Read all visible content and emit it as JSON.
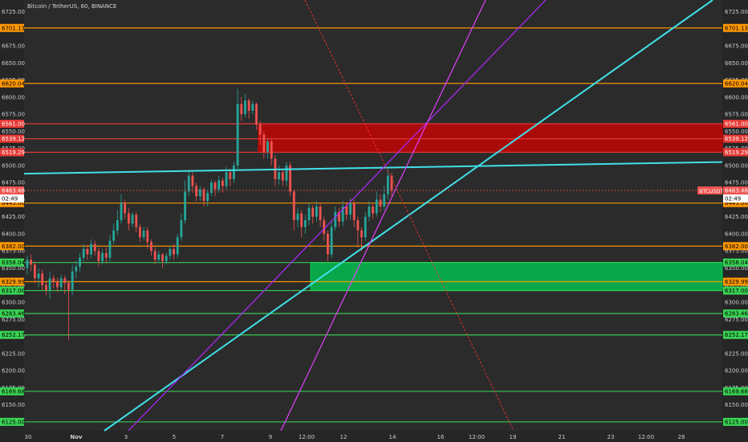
{
  "header": {
    "title": "Bitcoin / TetherUS, 60, BINANCE"
  },
  "chart_data": {
    "type": "candlestick",
    "symbol_label": "BTCUSDT",
    "ylim": [
      6112,
      6742
    ],
    "xlim": [
      0,
      932
    ],
    "y_ticks": [
      6725.0,
      6700.0,
      6675.0,
      6650.0,
      6625.0,
      6600.0,
      6575.0,
      6550.0,
      6525.0,
      6500.0,
      6475.0,
      6450.0,
      6425.0,
      6400.0,
      6375.0,
      6350.0,
      6325.0,
      6300.0,
      6275.0,
      6250.0,
      6225.0,
      6200.0,
      6175.0,
      6150.0,
      6125.0
    ],
    "x_tick_labels": [
      {
        "x": 35,
        "label": "30"
      },
      {
        "x": 95,
        "label": "Nov"
      },
      {
        "x": 157,
        "label": "3"
      },
      {
        "x": 217,
        "label": "5"
      },
      {
        "x": 277,
        "label": "7"
      },
      {
        "x": 337,
        "label": "9"
      },
      {
        "x": 382,
        "label": "12:00"
      },
      {
        "x": 428,
        "label": "12"
      },
      {
        "x": 489,
        "label": "14"
      },
      {
        "x": 549,
        "label": "16"
      },
      {
        "x": 594,
        "label": "12:00"
      },
      {
        "x": 639,
        "label": "19"
      },
      {
        "x": 700,
        "label": "21"
      },
      {
        "x": 761,
        "label": "23"
      },
      {
        "x": 805,
        "label": "12:00"
      },
      {
        "x": 849,
        "label": "26"
      }
    ],
    "horizontal_levels": [
      {
        "price": 6701.13,
        "label": "6701.13",
        "color": "#ff9800"
      },
      {
        "price": 6620.04,
        "label": "6620.04",
        "color": "#ff9800"
      },
      {
        "price": 6561.0,
        "label": "6561.00",
        "color": "#e53935"
      },
      {
        "price": 6539.12,
        "label": "6539.12",
        "color": "#e53935"
      },
      {
        "price": 6519.29,
        "label": "6519.29",
        "color": "#e53935"
      },
      {
        "price": 6445.0,
        "label": "6445.00",
        "color": "#ff9800"
      },
      {
        "price": 6382.0,
        "label": "6382.00",
        "color": "#ff9800"
      },
      {
        "price": 6358.04,
        "label": "6358.04",
        "color": "#39d353"
      },
      {
        "price": 6329.99,
        "label": "6329.99",
        "color": "#ff9800"
      },
      {
        "price": 6317.0,
        "label": "6317.00",
        "color": "#39d353"
      },
      {
        "price": 6283.46,
        "label": "6283.46",
        "color": "#39d353"
      },
      {
        "price": 6252.17,
        "label": "6252.17",
        "color": "#39d353"
      },
      {
        "price": 6169.68,
        "label": "6169.68",
        "color": "#39d353"
      },
      {
        "price": 6125.0,
        "label": "6125.00",
        "color": "#39d353"
      }
    ],
    "price_tag": {
      "price": 6463.48,
      "label": "6463.48",
      "time_label": "02:49"
    },
    "zones": [
      {
        "type": "resistance",
        "price_top": 6561.0,
        "price_bottom": 6519.29,
        "x_start": 322,
        "color": "#d50000"
      },
      {
        "type": "support",
        "price_top": 6358.04,
        "price_bottom": 6317.0,
        "x_start": 387,
        "color": "#00c853"
      }
    ],
    "trendlines": [
      {
        "x1": 30,
        "p1": 6488,
        "x2": 900,
        "p2": 6505,
        "color": "#40e0e8",
        "width": 2
      },
      {
        "x1": 130,
        "p1": 6112,
        "x2": 888,
        "p2": 6742,
        "color": "#40e0e8",
        "width": 2
      },
      {
        "x1": 160,
        "p1": 6112,
        "x2": 680,
        "p2": 6742,
        "color": "#b026ff",
        "width": 1.2
      },
      {
        "x1": 350,
        "p1": 6112,
        "x2": 605,
        "p2": 6742,
        "color": "#e040fb",
        "width": 1.2
      },
      {
        "x1": 380,
        "p1": 6742,
        "x2": 640,
        "p2": 6112,
        "color": "#ff3030",
        "width": 0.8,
        "dashed": true
      }
    ],
    "candles": [
      [
        6350,
        6362,
        6340,
        6368
      ],
      [
        6362,
        6355,
        6345,
        6370
      ],
      [
        6355,
        6335,
        6328,
        6360
      ],
      [
        6335,
        6342,
        6322,
        6350
      ],
      [
        6342,
        6325,
        6318,
        6348
      ],
      [
        6325,
        6318,
        6310,
        6330
      ],
      [
        6318,
        6335,
        6305,
        6345
      ],
      [
        6335,
        6330,
        6320,
        6340
      ],
      [
        6330,
        6322,
        6315,
        6336
      ],
      [
        6322,
        6335,
        6318,
        6340
      ],
      [
        6335,
        6328,
        6312,
        6339
      ],
      [
        6328,
        6318,
        6245,
        6332
      ],
      [
        6318,
        6345,
        6310,
        6355
      ],
      [
        6345,
        6352,
        6335,
        6360
      ],
      [
        6352,
        6365,
        6345,
        6372
      ],
      [
        6365,
        6378,
        6360,
        6385
      ],
      [
        6378,
        6370,
        6362,
        6384
      ],
      [
        6370,
        6385,
        6365,
        6392
      ],
      [
        6385,
        6375,
        6368,
        6390
      ],
      [
        6375,
        6360,
        6352,
        6380
      ],
      [
        6360,
        6372,
        6355,
        6378
      ],
      [
        6372,
        6365,
        6358,
        6380
      ],
      [
        6365,
        6390,
        6360,
        6398
      ],
      [
        6390,
        6405,
        6385,
        6415
      ],
      [
        6405,
        6420,
        6398,
        6435
      ],
      [
        6420,
        6445,
        6415,
        6458
      ],
      [
        6445,
        6430,
        6422,
        6450
      ],
      [
        6430,
        6415,
        6405,
        6438
      ],
      [
        6415,
        6428,
        6410,
        6432
      ],
      [
        6428,
        6410,
        6402,
        6432
      ],
      [
        6410,
        6395,
        6388,
        6415
      ],
      [
        6395,
        6405,
        6390,
        6410
      ],
      [
        6405,
        6388,
        6378,
        6410
      ],
      [
        6388,
        6375,
        6368,
        6392
      ],
      [
        6375,
        6362,
        6355,
        6380
      ],
      [
        6362,
        6370,
        6358,
        6375
      ],
      [
        6370,
        6360,
        6350,
        6372
      ],
      [
        6360,
        6368,
        6355,
        6372
      ],
      [
        6368,
        6378,
        6362,
        6382
      ],
      [
        6378,
        6370,
        6362,
        6385
      ],
      [
        6370,
        6395,
        6365,
        6400
      ],
      [
        6395,
        6420,
        6390,
        6430
      ],
      [
        6420,
        6462,
        6415,
        6478
      ],
      [
        6462,
        6485,
        6455,
        6492
      ],
      [
        6485,
        6470,
        6460,
        6490
      ],
      [
        6470,
        6455,
        6448,
        6475
      ],
      [
        6455,
        6465,
        6448,
        6470
      ],
      [
        6465,
        6448,
        6440,
        6468
      ],
      [
        6448,
        6460,
        6440,
        6465
      ],
      [
        6460,
        6475,
        6455,
        6480
      ],
      [
        6475,
        6465,
        6455,
        6478
      ],
      [
        6465,
        6478,
        6460,
        6485
      ],
      [
        6478,
        6470,
        6460,
        6482
      ],
      [
        6470,
        6490,
        6465,
        6498
      ],
      [
        6490,
        6480,
        6470,
        6495
      ],
      [
        6480,
        6500,
        6475,
        6505
      ],
      [
        6500,
        6590,
        6495,
        6612
      ],
      [
        6590,
        6575,
        6565,
        6600
      ],
      [
        6575,
        6595,
        6570,
        6605
      ],
      [
        6595,
        6580,
        6568,
        6598
      ],
      [
        6580,
        6590,
        6575,
        6595
      ],
      [
        6590,
        6560,
        6552,
        6592
      ],
      [
        6560,
        6545,
        6530,
        6565
      ],
      [
        6545,
        6520,
        6510,
        6550
      ],
      [
        6520,
        6535,
        6510,
        6540
      ],
      [
        6535,
        6510,
        6500,
        6540
      ],
      [
        6510,
        6480,
        6470,
        6515
      ],
      [
        6480,
        6490,
        6472,
        6500
      ],
      [
        6490,
        6478,
        6470,
        6495
      ],
      [
        6478,
        6500,
        6470,
        6505
      ],
      [
        6500,
        6462,
        6455,
        6505
      ],
      [
        6462,
        6420,
        6405,
        6465
      ],
      [
        6420,
        6430,
        6410,
        6438
      ],
      [
        6430,
        6410,
        6395,
        6435
      ],
      [
        6410,
        6420,
        6400,
        6428
      ],
      [
        6420,
        6438,
        6412,
        6445
      ],
      [
        6438,
        6425,
        6415,
        6442
      ],
      [
        6425,
        6440,
        6418,
        6448
      ],
      [
        6440,
        6420,
        6410,
        6445
      ],
      [
        6420,
        6400,
        6390,
        6425
      ],
      [
        6400,
        6370,
        6360,
        6405
      ],
      [
        6370,
        6410,
        6365,
        6420
      ],
      [
        6410,
        6432,
        6405,
        6440
      ],
      [
        6432,
        6418,
        6410,
        6438
      ],
      [
        6418,
        6440,
        6412,
        6448
      ],
      [
        6440,
        6428,
        6420,
        6445
      ],
      [
        6428,
        6445,
        6420,
        6452
      ],
      [
        6445,
        6420,
        6410,
        6450
      ],
      [
        6420,
        6405,
        6380,
        6425
      ],
      [
        6405,
        6395,
        6375,
        6410
      ],
      [
        6395,
        6425,
        6390,
        6432
      ],
      [
        6425,
        6440,
        6418,
        6448
      ],
      [
        6440,
        6430,
        6422,
        6445
      ],
      [
        6430,
        6450,
        6425,
        6462
      ],
      [
        6450,
        6440,
        6432,
        6458
      ],
      [
        6440,
        6458,
        6435,
        6470
      ],
      [
        6458,
        6485,
        6450,
        6495
      ],
      [
        6485,
        6463,
        6455,
        6490
      ]
    ]
  }
}
